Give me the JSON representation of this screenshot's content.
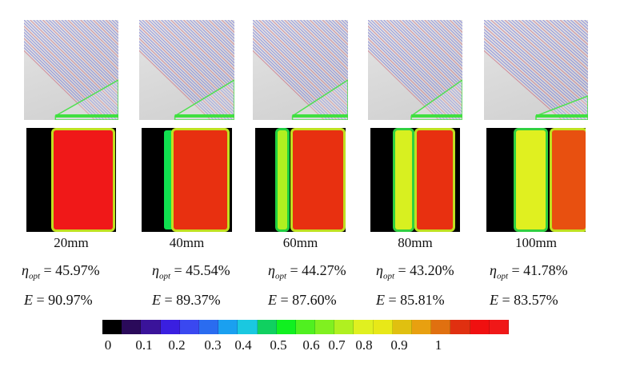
{
  "panels": [
    {
      "label": "20mm",
      "eta": "45.97%",
      "E": "90.97%"
    },
    {
      "label": "40mm",
      "eta": "45.54%",
      "E": "89.37%"
    },
    {
      "label": "60mm",
      "eta": "44.27%",
      "E": "87.60%"
    },
    {
      "label": "80mm",
      "eta": "43.20%",
      "E": "85.81%"
    },
    {
      "label": "100mm",
      "eta": "41.78%",
      "E": "83.57%"
    }
  ],
  "symbols": {
    "eta": "η",
    "eta_sub": "opt",
    "E": "E",
    "eq": " = "
  },
  "colorbar": {
    "ticks": [
      "0",
      "0.1",
      "0.2",
      "0.3",
      "0.4",
      "0.5",
      "0.6",
      "0.7",
      "0.8",
      "0.9",
      "1"
    ],
    "colors": [
      "#000000",
      "#2a0a5a",
      "#3a139a",
      "#3a1fe0",
      "#3a48f0",
      "#2a6cf0",
      "#1aa0f0",
      "#1ac8e0",
      "#10d060",
      "#10f020",
      "#50f020",
      "#80f020",
      "#b0f020",
      "#e0f020",
      "#e8e818",
      "#e0c010",
      "#e8a010",
      "#e07010",
      "#e03010",
      "#f01010",
      "#f01818"
    ]
  }
}
